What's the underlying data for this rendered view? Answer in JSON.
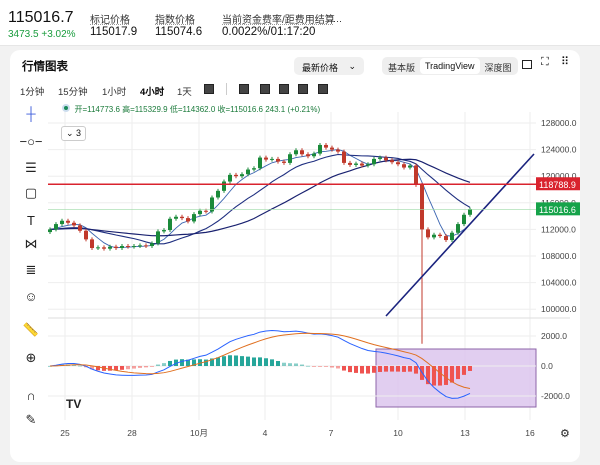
{
  "ticker": {
    "last_price": "115016.7",
    "change": "3473.5 +3.02%",
    "change_color": "#1a9c3e",
    "stats": [
      {
        "label": "标记价格",
        "value": "115017.9"
      },
      {
        "label": "指数价格",
        "value": "115074.6"
      },
      {
        "label": "当前资金费率/距费用结算",
        "value": "0.0022%/01:17:20"
      }
    ],
    "more": "···"
  },
  "panel": {
    "title": "行情图表",
    "price_select": "最新价格",
    "views": [
      "基本版",
      "TradingView",
      "深度图"
    ],
    "active_view": "TradingView",
    "timeframes": [
      "1分钟",
      "15分钟",
      "1小时",
      "4小时",
      "1天"
    ],
    "active_timeframe": "4小时"
  },
  "toolbar_icons": [
    "crosshair-icon",
    "trend-line-icon",
    "parallel-channel-icon",
    "rectangle-icon",
    "text-icon",
    "pattern-icon",
    "fib-icon",
    "emoji-icon",
    "ruler-icon",
    "zoom-in-icon",
    "magnet-icon",
    "lock-drawing-icon"
  ],
  "legend": {
    "open": "开=114773.6",
    "high": "高=115329.9",
    "low": "低=114362.0",
    "close": "收=115016.6",
    "change": "243.1 (+0.21%)",
    "indicators_toggle": "3"
  },
  "chart_data": {
    "type": "candlestick",
    "price_ticks": [
      "128000.0",
      "124000.0",
      "120000.0",
      "116000.0",
      "112000.0",
      "108000.0",
      "104000.0",
      "100000.0"
    ],
    "macd_ticks": [
      "2000.0",
      "0.0",
      "-2000.0"
    ],
    "x_ticks": [
      "25",
      "28",
      "10月",
      "4",
      "7",
      "10",
      "13",
      "16"
    ],
    "ylim": [
      100000,
      128000
    ],
    "closes": [
      112000,
      112800,
      113300,
      113000,
      112600,
      111800,
      110500,
      109200,
      109300,
      109100,
      109400,
      109200,
      109500,
      109400,
      109500,
      109600,
      109500,
      109900,
      111700,
      111900,
      113600,
      113900,
      113700,
      113200,
      114300,
      114800,
      114700,
      116800,
      117800,
      119200,
      120200,
      120000,
      120300,
      121000,
      121200,
      122800,
      122500,
      122600,
      122200,
      122000,
      123300,
      123900,
      123300,
      123000,
      123400,
      124700,
      124300,
      124000,
      123700,
      122000,
      121700,
      121900,
      121600,
      121800,
      122600,
      122800,
      122400,
      122100,
      121800,
      121300,
      121600,
      118700,
      112000,
      110800,
      111200,
      111000,
      110400,
      111500,
      112800,
      114200,
      115000
    ],
    "crash_low": 101500,
    "horizontal_line": {
      "price": 118788.9,
      "label": "118788.9",
      "color": "#d9232e"
    },
    "last_price_label": {
      "price": 115016.6,
      "label": "115016.6",
      "color": "#16a34a"
    },
    "up_color": "#1a8a3a",
    "down_color": "#c0392b"
  }
}
